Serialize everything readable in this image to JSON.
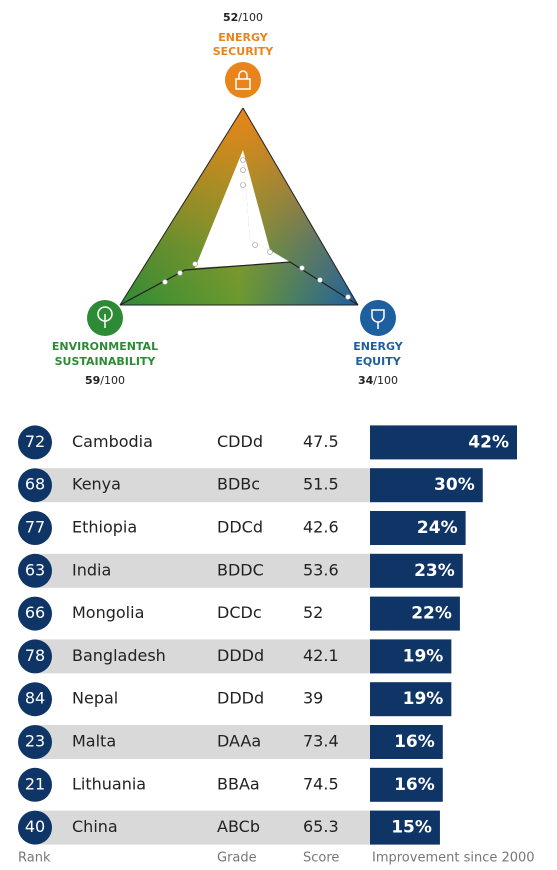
{
  "triangle": {
    "top": {
      "lines": [
        "ENERGY",
        "SECURITY"
      ],
      "score": 52,
      "out_of": "/100"
    },
    "left": {
      "lines": [
        "ENVIRONMENTAL",
        "SUSTAINABILITY"
      ],
      "score": 59,
      "out_of": "/100"
    },
    "right": {
      "lines": [
        "ENERGY",
        "EQUITY"
      ],
      "score": 34,
      "out_of": "/100"
    }
  },
  "chart_data": {
    "type": "bar",
    "orientation": "horizontal",
    "categories": [
      "Cambodia",
      "Kenya",
      "Ethiopia",
      "India",
      "Mongolia",
      "Bangladesh",
      "Nepal",
      "Malta",
      "Lithuania",
      "China"
    ],
    "rank": [
      72,
      68,
      77,
      63,
      66,
      78,
      84,
      23,
      21,
      40
    ],
    "grade": [
      "CDDd",
      "BDBc",
      "DDCd",
      "BDDC",
      "DCDc",
      "DDDd",
      "DDDd",
      "DAAa",
      "BBAa",
      "ABCb"
    ],
    "score": [
      47.5,
      51.5,
      42.6,
      53.6,
      52,
      42.1,
      39,
      73.4,
      74.5,
      65.3
    ],
    "values": [
      42,
      30,
      24,
      23,
      22,
      19,
      19,
      16,
      16,
      15
    ],
    "value_labels": [
      "42%",
      "30%",
      "24%",
      "23%",
      "22%",
      "19%",
      "19%",
      "16%",
      "16%",
      "15%"
    ],
    "color": "#0f3566",
    "xlim": [
      -9.5,
      42
    ],
    "column_labels": {
      "rank": "Rank",
      "grade": "Grade",
      "score": "Score",
      "values": "Improvement since 2000"
    }
  }
}
